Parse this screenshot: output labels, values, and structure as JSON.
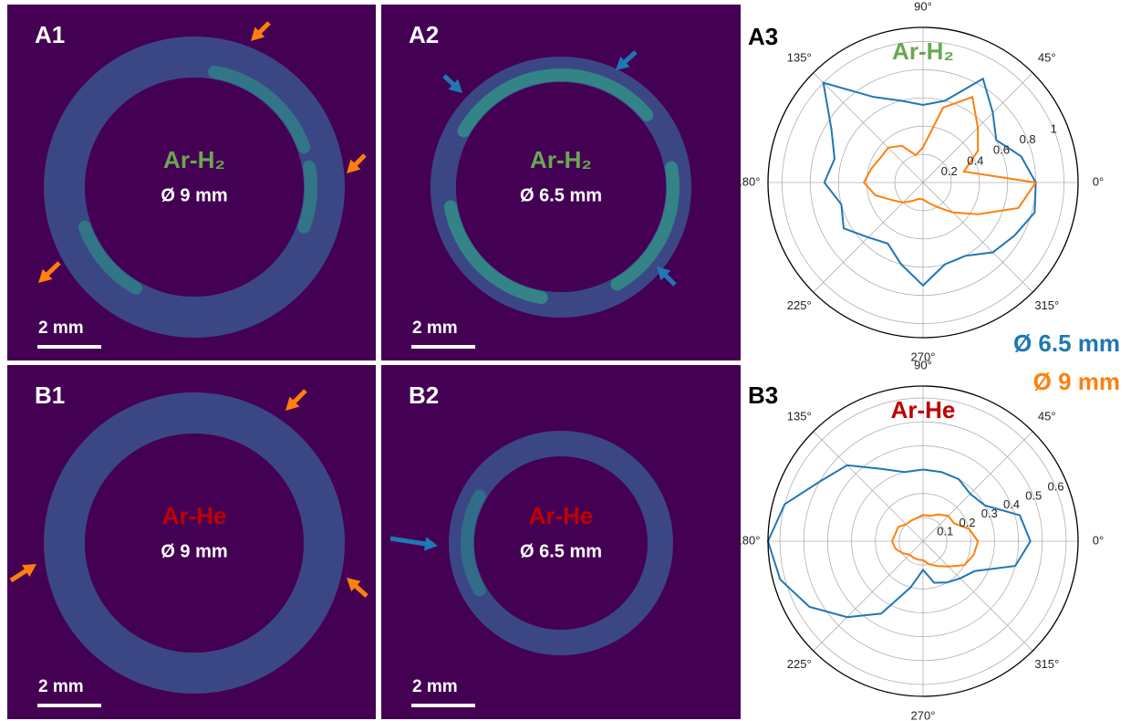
{
  "panels": [
    {
      "label": "A1",
      "gas": "Ar-H₂",
      "gas_color": "#6aa84f",
      "diameter": "Ø 9 mm",
      "scale": "2 mm"
    },
    {
      "label": "A2",
      "gas": "Ar-H₂",
      "gas_color": "#6aa84f",
      "diameter": "Ø 6.5 mm",
      "scale": "2 mm"
    },
    {
      "label": "B1",
      "gas": "Ar-He",
      "gas_color": "#c00000",
      "diameter": "Ø 9 mm",
      "scale": "2 mm"
    },
    {
      "label": "B2",
      "gas": "Ar-He",
      "gas_color": "#c00000",
      "diameter": "Ø 6.5 mm",
      "scale": "2 mm"
    }
  ],
  "chart_data": [
    {
      "type": "polar",
      "label": "A3",
      "title": "Ar-H₂",
      "title_color": "#6aa84f",
      "theta": [
        0,
        15,
        30,
        45,
        60,
        75,
        90,
        105,
        120,
        135,
        150,
        165,
        180,
        195,
        210,
        225,
        240,
        255,
        270,
        285,
        300,
        315,
        330,
        345
      ],
      "series": [
        {
          "name": "Ø 6.5 mm",
          "color": "#1f77b4",
          "values": [
            0.8,
            0.72,
            0.6,
            0.7,
            0.85,
            0.6,
            0.55,
            0.6,
            0.7,
            1.0,
            0.75,
            0.65,
            0.7,
            0.6,
            0.65,
            0.55,
            0.5,
            0.6,
            0.73,
            0.6,
            0.6,
            0.7,
            0.75,
            0.82
          ]
        },
        {
          "name": "Ø 9 mm",
          "color": "#ff7f0e",
          "values": [
            0.8,
            0.3,
            0.45,
            0.55,
            0.7,
            0.55,
            0.25,
            0.2,
            0.3,
            0.35,
            0.35,
            0.38,
            0.42,
            0.35,
            0.25,
            0.2,
            0.15,
            0.12,
            0.12,
            0.15,
            0.2,
            0.3,
            0.45,
            0.7
          ]
        }
      ],
      "rlim": [
        0,
        1.1
      ],
      "rticks": [
        0.2,
        0.4,
        0.6,
        0.8,
        1.0
      ],
      "thetaticks": [
        {
          "value": 0,
          "label": "0°"
        },
        {
          "value": 45,
          "label": "45°"
        },
        {
          "value": 90,
          "label": "90°"
        },
        {
          "value": 135,
          "label": "135°"
        },
        {
          "value": 180,
          "label": "180°"
        },
        {
          "value": 225,
          "label": "225°"
        },
        {
          "value": 270,
          "label": "270°"
        },
        {
          "value": 315,
          "label": "315°"
        }
      ],
      "grid": true
    },
    {
      "type": "polar",
      "label": "B3",
      "title": "Ar-He",
      "title_color": "#c00000",
      "theta": [
        0,
        15,
        30,
        45,
        60,
        75,
        90,
        105,
        120,
        135,
        150,
        165,
        180,
        195,
        210,
        225,
        240,
        255,
        270,
        285,
        300,
        315,
        330,
        345
      ],
      "series": [
        {
          "color": "#1f77b4",
          "values": [
            0.45,
            0.42,
            0.3,
            0.28,
            0.3,
            0.3,
            0.3,
            0.3,
            0.35,
            0.45,
            0.5,
            0.6,
            0.65,
            0.62,
            0.55,
            0.45,
            0.35,
            0.2,
            0.12,
            0.18,
            0.2,
            0.22,
            0.25,
            0.4
          ]
        },
        {
          "color": "#ff7f0e",
          "values": [
            0.23,
            0.2,
            0.15,
            0.15,
            0.13,
            0.11,
            0.11,
            0.1,
            0.1,
            0.1,
            0.12,
            0.12,
            0.13,
            0.12,
            0.1,
            0.08,
            0.08,
            0.08,
            0.08,
            0.1,
            0.12,
            0.15,
            0.2,
            0.22
          ]
        }
      ],
      "rlim": [
        0,
        0.65
      ],
      "rticks": [
        0.1,
        0.2,
        0.3,
        0.4,
        0.5,
        0.6
      ],
      "thetaticks": [
        {
          "value": 0,
          "label": "0°"
        },
        {
          "value": 45,
          "label": "45°"
        },
        {
          "value": 90,
          "label": "90°"
        },
        {
          "value": 135,
          "label": "135°"
        },
        {
          "value": 180,
          "label": "180°"
        },
        {
          "value": 225,
          "label": "225°"
        },
        {
          "value": 270,
          "label": "270°"
        },
        {
          "value": 315,
          "label": "315°"
        }
      ],
      "grid": true
    }
  ]
}
